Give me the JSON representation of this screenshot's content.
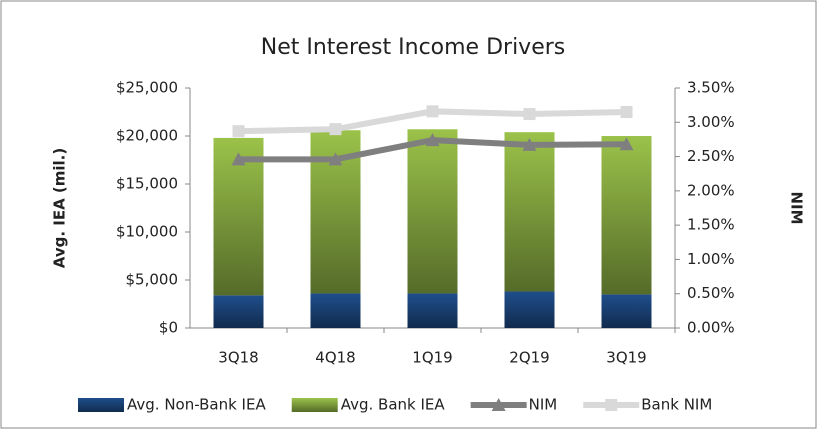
{
  "chart_data": {
    "type": "bar-line",
    "title": "Net Interest Income Drivers",
    "categories": [
      "3Q18",
      "4Q18",
      "1Q19",
      "2Q19",
      "3Q19"
    ],
    "ylabel": "Avg. IEA (mil.)",
    "y2label": "NIM",
    "ylim": [
      0,
      25000
    ],
    "yticks": [
      {
        "value": 0,
        "label": "$0"
      },
      {
        "value": 5000,
        "label": "$5,000"
      },
      {
        "value": 10000,
        "label": "$10,000"
      },
      {
        "value": 15000,
        "label": "$15,000"
      },
      {
        "value": 20000,
        "label": "$20,000"
      },
      {
        "value": 25000,
        "label": "$25,000"
      }
    ],
    "y2lim": [
      0,
      3.5
    ],
    "y2ticks": [
      {
        "value": 0,
        "label": "0.00%"
      },
      {
        "value": 0.5,
        "label": "0.50%"
      },
      {
        "value": 1,
        "label": "1.00%"
      },
      {
        "value": 1.5,
        "label": "1.50%"
      },
      {
        "value": 2,
        "label": "2.00%"
      },
      {
        "value": 2.5,
        "label": "2.50%"
      },
      {
        "value": 3,
        "label": "3.00%"
      },
      {
        "value": 3.5,
        "label": "3.50%"
      }
    ],
    "series": [
      {
        "name": "Avg. Non-Bank IEA",
        "type": "bar",
        "color": "#1f4e8c",
        "values": [
          3400,
          3600,
          3600,
          3800,
          3500
        ]
      },
      {
        "name": "Avg. Bank IEA",
        "type": "bar",
        "color": "#9bc24a",
        "values": [
          16400,
          17000,
          17100,
          16600,
          16500
        ]
      },
      {
        "name": "NIM",
        "type": "line",
        "axis": "y2",
        "marker": "triangle",
        "color": "#7f7f7f",
        "values": [
          2.46,
          2.46,
          2.74,
          2.67,
          2.68
        ]
      },
      {
        "name": "Bank NIM",
        "type": "line",
        "axis": "y2",
        "marker": "square",
        "color": "#d9d9d9",
        "values": [
          2.87,
          2.9,
          3.16,
          3.12,
          3.15
        ]
      }
    ]
  }
}
